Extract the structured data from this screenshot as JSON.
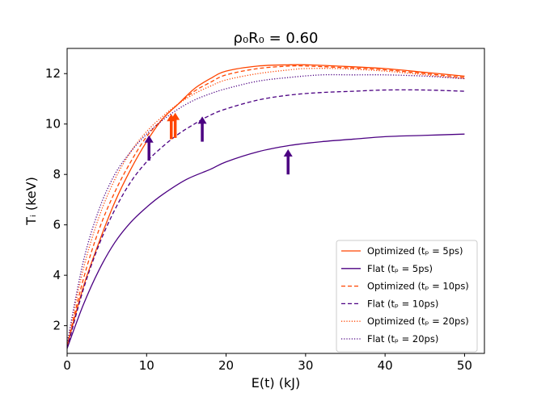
{
  "chart_data": {
    "type": "line",
    "title": "ρ₀R₀ = 0.60",
    "xlabel": "E(t) (kJ)",
    "ylabel": "Tᵢ (keV)",
    "xlim": [
      0,
      52.5
    ],
    "ylim": [
      0.9,
      13.0
    ],
    "xticks": [
      0,
      10,
      20,
      30,
      40,
      50
    ],
    "yticks": [
      2,
      4,
      6,
      8,
      10,
      12
    ],
    "legend_position": "lower-right",
    "colors": {
      "optimized": "#ff4500",
      "flat": "#4b0082"
    },
    "series": [
      {
        "name": "Optimized (tₚ = 5ps)",
        "color": "#ff4500",
        "linestyle": "solid",
        "x": [
          0,
          2,
          4,
          6,
          8,
          10,
          12,
          14,
          16,
          18,
          20,
          24,
          28,
          30,
          34,
          40,
          45,
          50
        ],
        "y": [
          1.2,
          3.5,
          5.3,
          6.9,
          8.2,
          9.3,
          10.2,
          10.8,
          11.4,
          11.8,
          12.1,
          12.3,
          12.35,
          12.35,
          12.3,
          12.2,
          12.05,
          11.9
        ]
      },
      {
        "name": "Flat (tₚ = 5ps)",
        "color": "#4b0082",
        "linestyle": "solid",
        "x": [
          0,
          2,
          4,
          6,
          8,
          10,
          12,
          15,
          18,
          20,
          24,
          28,
          32,
          36,
          40,
          45,
          50
        ],
        "y": [
          1.1,
          2.8,
          4.2,
          5.3,
          6.1,
          6.7,
          7.2,
          7.8,
          8.2,
          8.5,
          8.9,
          9.15,
          9.3,
          9.4,
          9.5,
          9.55,
          9.6
        ]
      },
      {
        "name": "Optimized (tₚ = 10ps)",
        "color": "#ff4500",
        "linestyle": "dashed",
        "x": [
          0,
          2,
          4,
          6,
          8,
          10,
          12,
          14,
          16,
          18,
          20,
          24,
          28,
          30,
          34,
          40,
          45,
          50
        ],
        "y": [
          1.2,
          3.8,
          5.8,
          7.3,
          8.5,
          9.5,
          10.2,
          10.8,
          11.3,
          11.65,
          11.95,
          12.2,
          12.3,
          12.3,
          12.25,
          12.15,
          12.0,
          11.85
        ]
      },
      {
        "name": "Flat (tₚ = 10ps)",
        "color": "#4b0082",
        "linestyle": "dashed",
        "x": [
          0,
          2,
          4,
          6,
          8,
          10,
          12,
          14,
          16,
          18,
          20,
          24,
          28,
          32,
          36,
          40,
          45,
          50
        ],
        "y": [
          1.1,
          3.4,
          5.2,
          6.6,
          7.7,
          8.5,
          9.1,
          9.6,
          10.0,
          10.35,
          10.6,
          10.95,
          11.15,
          11.25,
          11.3,
          11.35,
          11.35,
          11.3
        ]
      },
      {
        "name": "Optimized (tₚ = 20ps)",
        "color": "#ff4500",
        "linestyle": "dotted",
        "x": [
          0,
          2,
          4,
          6,
          8,
          10,
          12,
          14,
          16,
          18,
          20,
          24,
          28,
          30,
          34,
          40,
          45,
          50
        ],
        "y": [
          1.3,
          4.2,
          6.3,
          7.8,
          8.9,
          9.7,
          10.3,
          10.8,
          11.2,
          11.5,
          11.75,
          12.0,
          12.15,
          12.2,
          12.2,
          12.1,
          11.95,
          11.8
        ]
      },
      {
        "name": "Flat (tₚ = 20ps)",
        "color": "#4b0082",
        "linestyle": "dotted",
        "x": [
          0,
          2,
          4,
          6,
          8,
          10,
          12,
          14,
          16,
          18,
          20,
          24,
          28,
          32,
          36,
          40,
          45,
          50
        ],
        "y": [
          1.3,
          4.5,
          6.6,
          8.0,
          8.9,
          9.6,
          10.15,
          10.6,
          10.95,
          11.2,
          11.4,
          11.7,
          11.85,
          11.95,
          11.95,
          11.95,
          11.9,
          11.8
        ]
      }
    ],
    "annotations": [
      {
        "type": "arrow",
        "color": "#4b0082",
        "x": 10.3,
        "y_from": 8.55,
        "y_to": 9.55
      },
      {
        "type": "arrow",
        "color": "#ff4500",
        "x": 13.1,
        "y_from": 9.4,
        "y_to": 10.4
      },
      {
        "type": "arrow",
        "color": "#ff4500",
        "x": 13.6,
        "y_from": 9.45,
        "y_to": 10.45
      },
      {
        "type": "arrow",
        "color": "#4b0082",
        "x": 17.0,
        "y_from": 9.3,
        "y_to": 10.3
      },
      {
        "type": "arrow",
        "color": "#4b0082",
        "x": 27.8,
        "y_from": 8.0,
        "y_to": 9.0
      }
    ]
  }
}
